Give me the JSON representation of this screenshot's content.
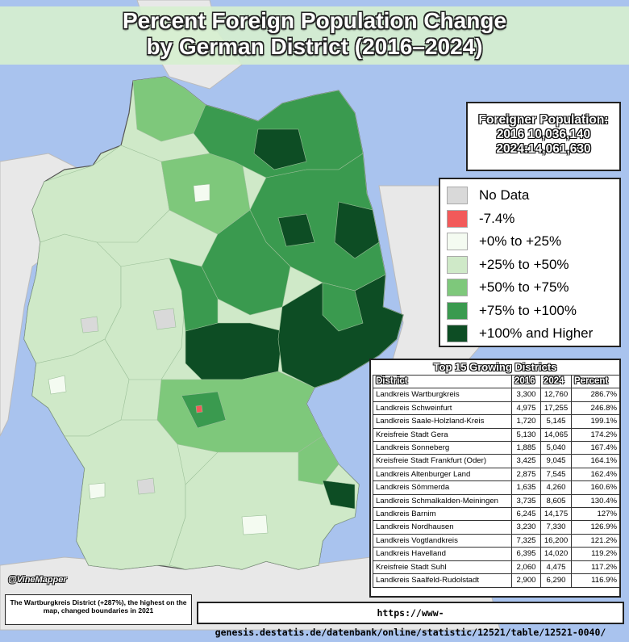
{
  "title": {
    "line1": "Percent Foreign Population Change",
    "line2": "by German District (2016–2024)"
  },
  "population": {
    "heading": "Foreigner Population:",
    "line_2016": "2016 10,036,140",
    "line_2024": "2024:14,061,630"
  },
  "colors": {
    "sea": "#a9c3ee",
    "neighbor_land": "#e8e8e8",
    "no_data": "#d9d9d9",
    "negative": "#f25a5a",
    "c0_25": "#f4fbf1",
    "c25_50": "#cfe9c8",
    "c50_75": "#7ec87b",
    "c75_100": "#3a9a4f",
    "c100_plus": "#0d4d24"
  },
  "legend": [
    {
      "label": "No Data",
      "color": "#d9d9d9"
    },
    {
      "label": "-7.4%",
      "color": "#f25a5a"
    },
    {
      "label": "+0% to +25%",
      "color": "#f4fbf1"
    },
    {
      "label": "+25% to +50%",
      "color": "#cfe9c8"
    },
    {
      "label": "+50% to +75%",
      "color": "#7ec87b"
    },
    {
      "label": "+75% to +100%",
      "color": "#3a9a4f"
    },
    {
      "label": "+100% and Higher",
      "color": "#0d4d24"
    }
  ],
  "top15": {
    "title": "Top 15 Growing Districts",
    "headers": [
      "District",
      "2016",
      "2024",
      "Percent"
    ],
    "rows": [
      [
        "Landkreis Wartburgkreis",
        "3,300",
        "12,760",
        "286.7%"
      ],
      [
        "Landkreis Schweinfurt",
        "4,975",
        "17,255",
        "246.8%"
      ],
      [
        "Landkreis Saale-Holzland-Kreis",
        "1,720",
        "5,145",
        "199.1%"
      ],
      [
        "Kreisfreie Stadt Gera",
        "5,130",
        "14,065",
        "174.2%"
      ],
      [
        "Landkreis Sonneberg",
        "1,885",
        "5,040",
        "167.4%"
      ],
      [
        "Kreisfreie Stadt Frankfurt (Oder)",
        "3,425",
        "9,045",
        "164.1%"
      ],
      [
        "Landkreis Altenburger Land",
        "2,875",
        "7,545",
        "162.4%"
      ],
      [
        "Landkreis Sömmerda",
        "1,635",
        "4,260",
        "160.6%"
      ],
      [
        "Landkreis Schmalkalden-Meiningen",
        "3,735",
        "8,605",
        "130.4%"
      ],
      [
        "Landkreis Barnim",
        "6,245",
        "14,175",
        "127%"
      ],
      [
        "Landkreis Nordhausen",
        "3,230",
        "7,330",
        "126.9%"
      ],
      [
        "Landkreis Vogtlandkreis",
        "7,325",
        "16,200",
        "121.2%"
      ],
      [
        "Landkreis Havelland",
        "6,395",
        "14,020",
        "119.2%"
      ],
      [
        "Kreisfreie Stadt Suhl",
        "2,060",
        "4,475",
        "117.2%"
      ],
      [
        "Landkreis Saalfeld-Rudolstadt",
        "2,900",
        "6,290",
        "116.9%"
      ]
    ]
  },
  "watermark": "@VineMapper",
  "note": "The Wartburgkreis District (+287%), the highest on the map, changed boundaries in 2021",
  "source_url": "https://www-genesis.destatis.de/datenbank/online/statistic/12521/table/12521-0040/"
}
